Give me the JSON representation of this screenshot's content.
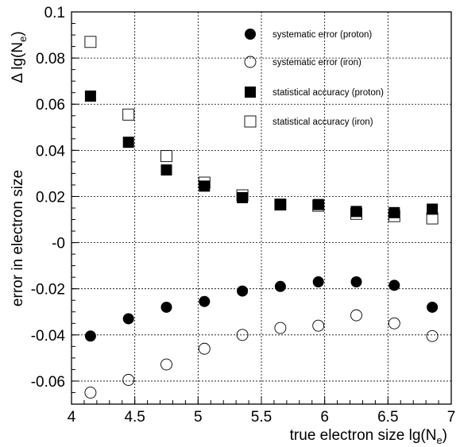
{
  "chart_data": {
    "type": "scatter",
    "xlabel": "true electron size lg(N_e)",
    "ylabel_main": "error in electron size",
    "ylabel_top": "Δ lg(N_e)",
    "xlim": [
      4,
      7
    ],
    "ylim": [
      -0.07,
      0.1
    ],
    "xticks": [
      4,
      4.5,
      5,
      5.5,
      6,
      6.5,
      7
    ],
    "xtick_labels": [
      "4",
      "4.5",
      "5",
      "5.5",
      "6",
      "6.5",
      "7"
    ],
    "yticks": [
      -0.06,
      -0.04,
      -0.02,
      0,
      0.02,
      0.04,
      0.06,
      0.08,
      0.1
    ],
    "ytick_labels": [
      "-0.06",
      "-0.04",
      "-0.02",
      "-0",
      "0.02",
      "0.04",
      "0.06",
      "0.08",
      "0.1"
    ],
    "grid": true,
    "legend_position": "top-right",
    "series": [
      {
        "name": "systematic error (proton)",
        "marker": "filled-circle",
        "x": [
          4.15,
          4.45,
          4.75,
          5.05,
          5.35,
          5.65,
          5.95,
          6.25,
          6.55,
          6.85
        ],
        "y": [
          -0.0405,
          -0.033,
          -0.028,
          -0.0255,
          -0.021,
          -0.019,
          -0.017,
          -0.017,
          -0.0185,
          -0.028
        ]
      },
      {
        "name": "systematic error (iron)",
        "marker": "open-circle",
        "x": [
          4.15,
          4.45,
          4.75,
          5.05,
          5.35,
          5.65,
          5.95,
          6.25,
          6.55,
          6.85
        ],
        "y": [
          -0.065,
          -0.0595,
          -0.0528,
          -0.046,
          -0.04,
          -0.037,
          -0.036,
          -0.0315,
          -0.035,
          -0.0405
        ]
      },
      {
        "name": "statistical accuracy (proton)",
        "marker": "filled-square",
        "x": [
          4.15,
          4.45,
          4.75,
          5.05,
          5.35,
          5.65,
          5.95,
          6.25,
          6.55,
          6.85
        ],
        "y": [
          0.0635,
          0.0435,
          0.0315,
          0.0245,
          0.0195,
          0.0165,
          0.0165,
          0.0135,
          0.013,
          0.0145
        ]
      },
      {
        "name": "statistical accuracy (iron)",
        "marker": "open-square",
        "x": [
          4.15,
          4.45,
          4.75,
          5.05,
          5.35,
          5.65,
          5.95,
          6.25,
          6.55,
          6.85
        ],
        "y": [
          0.087,
          0.0555,
          0.0375,
          0.026,
          0.0205,
          0.0165,
          0.016,
          0.0125,
          0.0115,
          0.0105
        ]
      }
    ]
  }
}
